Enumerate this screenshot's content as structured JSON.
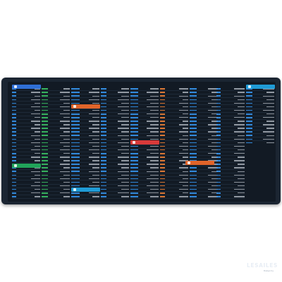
{
  "brand": {
    "logo_text": "LESAILES",
    "tagline": "Design by"
  },
  "colors": {
    "mat_border": "#1b2532",
    "mat_surface": "#121a24",
    "key_blue": "#3aa0ff",
    "key_green": "#3ecf6a",
    "key_orange": "#ff8a3a",
    "header_blue": "#2f6fd6",
    "header_green": "#21a35a",
    "header_orange": "#e0642a",
    "header_cyan": "#1f9bd6",
    "header_red": "#d83a3a"
  },
  "section_headers": [
    "",
    "",
    "",
    "",
    "",
    "",
    ""
  ],
  "row_counts": [
    36,
    36,
    36,
    36,
    36,
    36,
    36,
    36,
    18
  ]
}
